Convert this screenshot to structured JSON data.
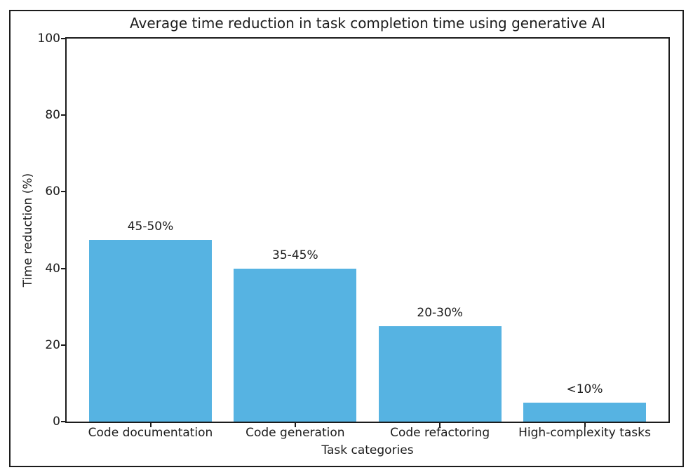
{
  "chart_data": {
    "type": "bar",
    "title": "Average time reduction in task completion time using generative AI",
    "xlabel": "Task categories",
    "ylabel": "Time reduction (%)",
    "categories": [
      "Code documentation",
      "Code generation",
      "Code refactoring",
      "High-complexity tasks"
    ],
    "values": [
      47.5,
      40,
      25,
      5
    ],
    "bar_labels": [
      "45-50%",
      "35-45%",
      "20-30%",
      "<10%"
    ],
    "ylim": [
      0,
      100
    ],
    "yticks": [
      0,
      20,
      40,
      60,
      80,
      100
    ],
    "bar_color": "#56b3e2",
    "axis_color": "#1c1c1c",
    "grid": false,
    "legend_position": "none"
  }
}
